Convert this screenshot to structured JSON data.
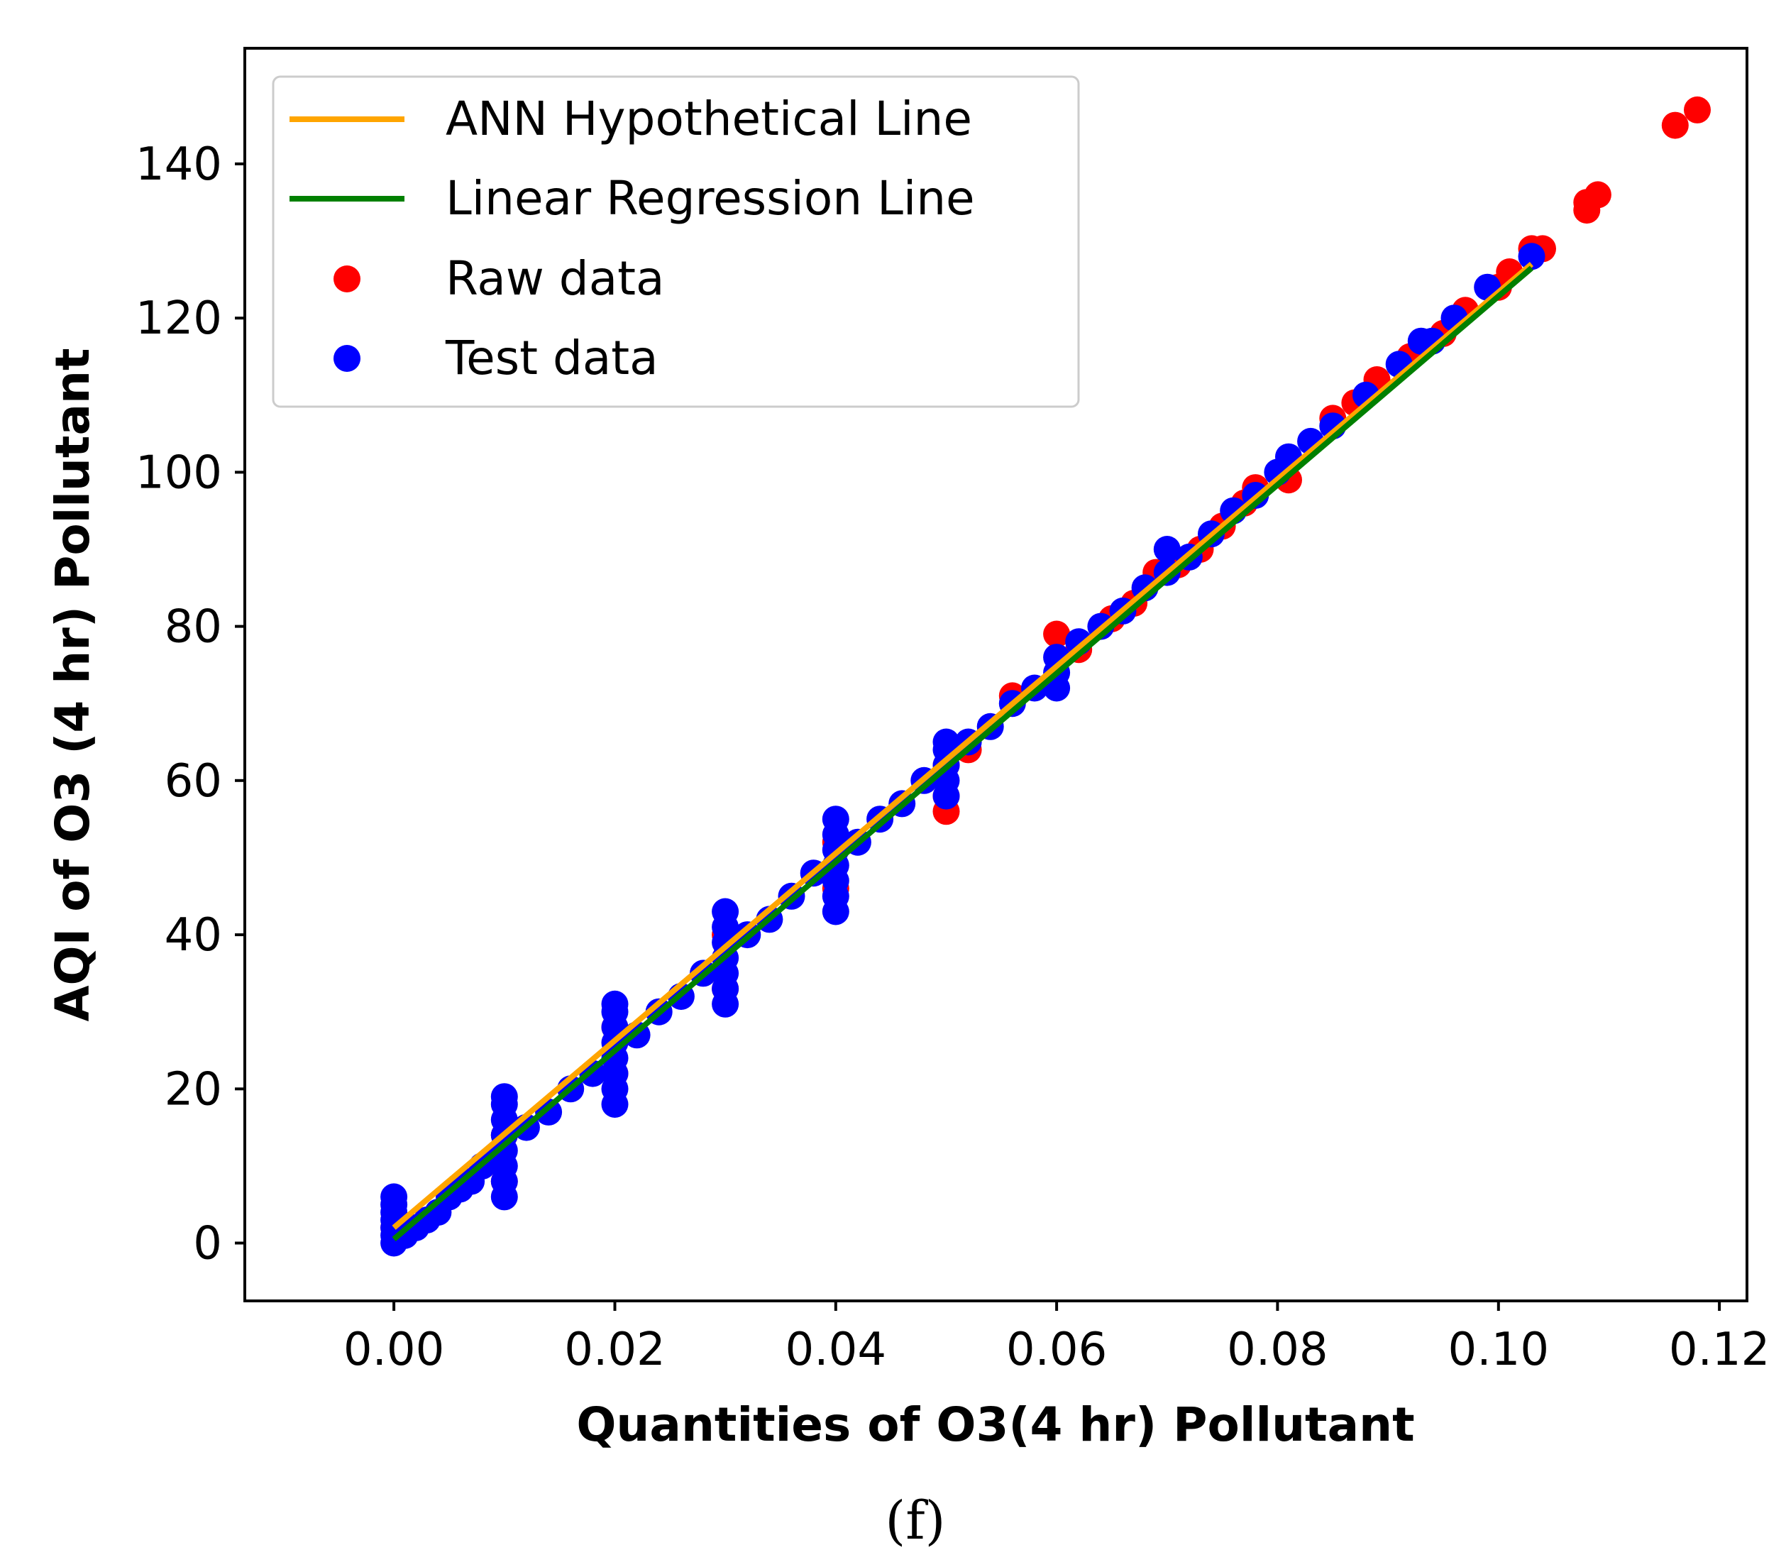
{
  "chart_data": {
    "type": "scatter",
    "title": "",
    "xlabel": "Quantities of O3(4 hr) Pollutant",
    "ylabel": "AQI of O3 (4 hr) Pollutant",
    "caption": "(f)",
    "xlim": [
      -0.0135,
      0.1225
    ],
    "ylim": [
      -7.5,
      155
    ],
    "xticks": [
      0.0,
      0.02,
      0.04,
      0.06,
      0.08,
      0.1,
      0.12
    ],
    "xtick_labels": [
      "0.00",
      "0.02",
      "0.04",
      "0.06",
      "0.08",
      "0.10",
      "0.12"
    ],
    "yticks": [
      0,
      20,
      40,
      60,
      80,
      100,
      120,
      140
    ],
    "ytick_labels": [
      "0",
      "20",
      "40",
      "60",
      "80",
      "100",
      "120",
      "140"
    ],
    "grid": false,
    "legend_position": "top-left",
    "colors": {
      "ann": "#FFA500",
      "linreg": "#008000",
      "raw": "#FF0000",
      "test": "#0000FF"
    },
    "lines": [
      {
        "name": "ANN Hypothetical Line",
        "color": "#FFA500",
        "x": [
          0.0,
          0.103
        ],
        "y": [
          2.0,
          127.0
        ]
      },
      {
        "name": "Linear Regression Line",
        "color": "#008000",
        "x": [
          0.0,
          0.103
        ],
        "y": [
          0.5,
          126.5
        ]
      }
    ],
    "series": [
      {
        "name": "Raw data",
        "color": "#FF0000",
        "points": [
          [
            0.0,
            2
          ],
          [
            0.01,
            8
          ],
          [
            0.01,
            14
          ],
          [
            0.02,
            22
          ],
          [
            0.02,
            28
          ],
          [
            0.03,
            33
          ],
          [
            0.03,
            40
          ],
          [
            0.04,
            46
          ],
          [
            0.04,
            52
          ],
          [
            0.05,
            56
          ],
          [
            0.05,
            58
          ],
          [
            0.05,
            62
          ],
          [
            0.052,
            64
          ],
          [
            0.056,
            71
          ],
          [
            0.06,
            79
          ],
          [
            0.062,
            77
          ],
          [
            0.065,
            81
          ],
          [
            0.067,
            83
          ],
          [
            0.069,
            87
          ],
          [
            0.071,
            88
          ],
          [
            0.073,
            90
          ],
          [
            0.075,
            93
          ],
          [
            0.077,
            96
          ],
          [
            0.078,
            98
          ],
          [
            0.081,
            99
          ],
          [
            0.085,
            107
          ],
          [
            0.087,
            109
          ],
          [
            0.089,
            112
          ],
          [
            0.092,
            115
          ],
          [
            0.095,
            118
          ],
          [
            0.097,
            121
          ],
          [
            0.1,
            124
          ],
          [
            0.101,
            126
          ],
          [
            0.103,
            129
          ],
          [
            0.104,
            129
          ],
          [
            0.108,
            134
          ],
          [
            0.108,
            135
          ],
          [
            0.109,
            136
          ],
          [
            0.116,
            145
          ],
          [
            0.118,
            147
          ]
        ]
      },
      {
        "name": "Test data",
        "color": "#0000FF",
        "points": [
          [
            0.0,
            0
          ],
          [
            0.0,
            1
          ],
          [
            0.0,
            2
          ],
          [
            0.0,
            3
          ],
          [
            0.0,
            4
          ],
          [
            0.0,
            5
          ],
          [
            0.0,
            6
          ],
          [
            0.001,
            1
          ],
          [
            0.002,
            2
          ],
          [
            0.003,
            3
          ],
          [
            0.004,
            4
          ],
          [
            0.005,
            6
          ],
          [
            0.006,
            7
          ],
          [
            0.007,
            8
          ],
          [
            0.008,
            10
          ],
          [
            0.009,
            11
          ],
          [
            0.01,
            6
          ],
          [
            0.01,
            8
          ],
          [
            0.01,
            10
          ],
          [
            0.01,
            12
          ],
          [
            0.01,
            14
          ],
          [
            0.01,
            16
          ],
          [
            0.01,
            18
          ],
          [
            0.01,
            19
          ],
          [
            0.012,
            15
          ],
          [
            0.014,
            17
          ],
          [
            0.016,
            20
          ],
          [
            0.018,
            22
          ],
          [
            0.02,
            18
          ],
          [
            0.02,
            20
          ],
          [
            0.02,
            22
          ],
          [
            0.02,
            24
          ],
          [
            0.02,
            26
          ],
          [
            0.02,
            28
          ],
          [
            0.02,
            30
          ],
          [
            0.02,
            31
          ],
          [
            0.022,
            27
          ],
          [
            0.024,
            30
          ],
          [
            0.026,
            32
          ],
          [
            0.028,
            35
          ],
          [
            0.03,
            31
          ],
          [
            0.03,
            33
          ],
          [
            0.03,
            35
          ],
          [
            0.03,
            37
          ],
          [
            0.03,
            39
          ],
          [
            0.03,
            41
          ],
          [
            0.03,
            43
          ],
          [
            0.032,
            40
          ],
          [
            0.034,
            42
          ],
          [
            0.036,
            45
          ],
          [
            0.038,
            48
          ],
          [
            0.04,
            43
          ],
          [
            0.04,
            45
          ],
          [
            0.04,
            47
          ],
          [
            0.04,
            49
          ],
          [
            0.04,
            51
          ],
          [
            0.04,
            53
          ],
          [
            0.04,
            55
          ],
          [
            0.042,
            52
          ],
          [
            0.044,
            55
          ],
          [
            0.046,
            57
          ],
          [
            0.048,
            60
          ],
          [
            0.05,
            58
          ],
          [
            0.05,
            60
          ],
          [
            0.05,
            62
          ],
          [
            0.05,
            64
          ],
          [
            0.05,
            65
          ],
          [
            0.052,
            65
          ],
          [
            0.054,
            67
          ],
          [
            0.056,
            70
          ],
          [
            0.058,
            72
          ],
          [
            0.06,
            72
          ],
          [
            0.06,
            74
          ],
          [
            0.06,
            76
          ],
          [
            0.062,
            78
          ],
          [
            0.064,
            80
          ],
          [
            0.066,
            82
          ],
          [
            0.068,
            85
          ],
          [
            0.07,
            87
          ],
          [
            0.07,
            90
          ],
          [
            0.072,
            89
          ],
          [
            0.074,
            92
          ],
          [
            0.076,
            95
          ],
          [
            0.078,
            97
          ],
          [
            0.08,
            100
          ],
          [
            0.081,
            102
          ],
          [
            0.083,
            104
          ],
          [
            0.085,
            106
          ],
          [
            0.088,
            110
          ],
          [
            0.091,
            114
          ],
          [
            0.093,
            117
          ],
          [
            0.094,
            117
          ],
          [
            0.096,
            120
          ],
          [
            0.099,
            124
          ],
          [
            0.103,
            128
          ]
        ]
      }
    ]
  }
}
